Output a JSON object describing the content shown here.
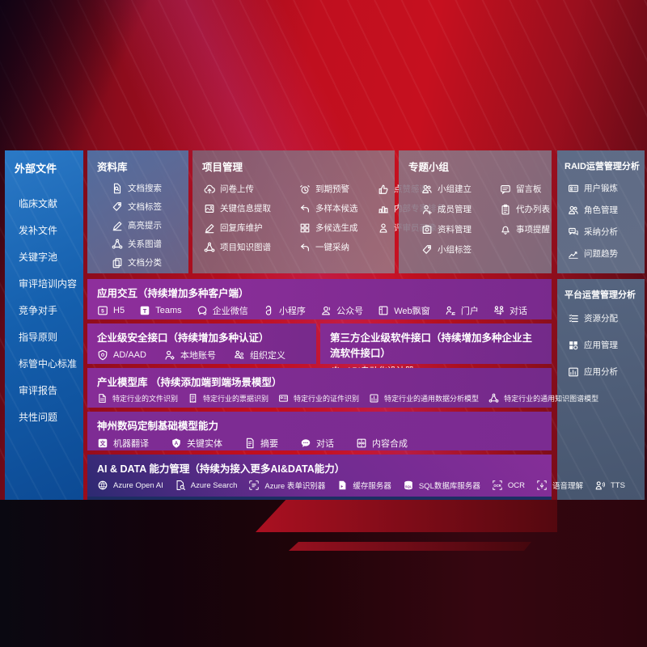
{
  "colors": {
    "accent_red": "#c00f1f",
    "panel_blue": "#1560ae",
    "panel_steel": "#5e6c87",
    "row_purple": "#7b2b91",
    "row5_navy": "#2d2a72"
  },
  "sidebar": {
    "title": "外部文件",
    "items": [
      "临床文献",
      "发补文件",
      "关键字池",
      "审评培训内容",
      "竞争对手",
      "指导原则",
      "标管中心标准",
      "审评报告",
      "共性问题"
    ]
  },
  "panels": {
    "library": {
      "title": "资料库",
      "items": [
        {
          "icon": "doc-search",
          "label": "文档搜索"
        },
        {
          "icon": "tag",
          "label": "文档标签"
        },
        {
          "icon": "pen",
          "label": "高亮提示"
        },
        {
          "icon": "graph",
          "label": "关系图谱"
        },
        {
          "icon": "docs",
          "label": "文档分类"
        }
      ]
    },
    "project": {
      "title": "项目管理",
      "items": [
        {
          "icon": "cloud-up",
          "label": "问卷上传"
        },
        {
          "icon": "alarm",
          "label": "到期预警"
        },
        {
          "icon": "thumb",
          "label": "点赞感谢"
        },
        {
          "icon": "extract",
          "label": "关键信息提取"
        },
        {
          "icon": "reply",
          "label": "多样本候选"
        },
        {
          "icon": "rank",
          "label": "内部专家排名"
        },
        {
          "icon": "pen",
          "label": "回复库维护"
        },
        {
          "icon": "grid4",
          "label": "多候选生成"
        },
        {
          "icon": "person",
          "label": "评审员画像"
        },
        {
          "icon": "graph",
          "label": "项目知识图谱"
        },
        {
          "icon": "reply",
          "label": "一键采纳"
        }
      ]
    },
    "group": {
      "title": "专题小组",
      "items": [
        {
          "icon": "people",
          "label": "小组建立"
        },
        {
          "icon": "bbs",
          "label": "留言板"
        },
        {
          "icon": "person-add",
          "label": "成员管理"
        },
        {
          "icon": "clipboard",
          "label": "代办列表"
        },
        {
          "icon": "photo",
          "label": "资料管理"
        },
        {
          "icon": "bell",
          "label": "事项提醒"
        },
        {
          "icon": "tag",
          "label": "小组标签"
        }
      ]
    },
    "raid": {
      "title": "RAID运营管理分析",
      "items": [
        {
          "icon": "idcard",
          "label": "用户锻炼"
        },
        {
          "icon": "people",
          "label": "角色管理"
        },
        {
          "icon": "chat2",
          "label": "采纳分析"
        },
        {
          "icon": "trend",
          "label": "问题趋势"
        }
      ]
    },
    "platform": {
      "title": "平台运营管理分析",
      "items": [
        {
          "icon": "list3",
          "label": "资源分配"
        },
        {
          "icon": "grid-apps",
          "label": "应用管理"
        },
        {
          "icon": "chart-app",
          "label": "应用分析"
        }
      ]
    }
  },
  "rows": {
    "interaction": {
      "title": "应用交互（持续增加多种客户端）",
      "items": [
        {
          "icon": "h5",
          "label": "H5"
        },
        {
          "icon": "teams",
          "label": "Teams"
        },
        {
          "icon": "wechat",
          "label": "企业微信"
        },
        {
          "icon": "miniapp",
          "label": "小程序"
        },
        {
          "icon": "pubacct",
          "label": "公众号"
        },
        {
          "icon": "webwin",
          "label": "Web飘窗"
        },
        {
          "icon": "portal",
          "label": "门户"
        },
        {
          "icon": "dialog",
          "label": "对话"
        }
      ]
    },
    "security": {
      "title": "企业级安全接口（持续增加多种认证）",
      "items": [
        {
          "icon": "shield",
          "label": "AD/AAD"
        },
        {
          "icon": "user-gear",
          "label": "本地账号"
        },
        {
          "icon": "org",
          "label": "组织定义"
        }
      ]
    },
    "thirdparty": {
      "title": "第三方企业级软件接口（持续增加多种企业主流软件接口）",
      "items": [
        {
          "icon": "api",
          "label": "API自动化设计器"
        }
      ]
    },
    "industry": {
      "title": "产业模型库 （持续添加端到端场景模型）",
      "items": [
        {
          "icon": "doc-file",
          "label": "特定行业的文件识别"
        },
        {
          "icon": "receipt",
          "label": "特定行业的票据识别"
        },
        {
          "icon": "cert",
          "label": "特定行业的证件识别"
        },
        {
          "icon": "data-model",
          "label": "特定行业的通用数据分析模型"
        },
        {
          "icon": "graph",
          "label": "特定行业的通用知识图谱模型"
        }
      ]
    },
    "base_model": {
      "title": "神州数码定制基础模型能力",
      "items": [
        {
          "icon": "translate",
          "label": "机器翻译"
        },
        {
          "icon": "entity",
          "label": "关键实体"
        },
        {
          "icon": "summary",
          "label": "摘要"
        },
        {
          "icon": "chat-dots",
          "label": "对话"
        },
        {
          "icon": "compose",
          "label": "内容合成"
        }
      ]
    },
    "ai_data": {
      "title": "AI & DATA 能力管理（持续为接入更多AI&DATA能力）",
      "items": [
        {
          "icon": "openai",
          "label": "Azure Open AI"
        },
        {
          "icon": "az-search",
          "label": "Azure Search"
        },
        {
          "icon": "az-form",
          "label": "Azure 表单识别器"
        },
        {
          "icon": "cache",
          "label": "缓存服务器"
        },
        {
          "icon": "sql",
          "label": "SQL数据库服务器"
        },
        {
          "icon": "ocr",
          "label": "OCR"
        },
        {
          "icon": "speech",
          "label": "语音理解"
        },
        {
          "icon": "tts",
          "label": "TTS"
        }
      ]
    }
  }
}
